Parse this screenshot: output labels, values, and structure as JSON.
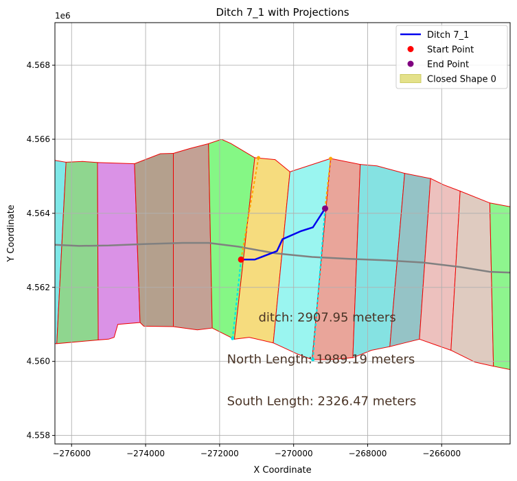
{
  "chart_data": {
    "type": "line",
    "title": "Ditch 7_1 with Projections",
    "xlabel": "X Coordinate",
    "ylabel": "Y Coordinate",
    "y_offset_label": "1e6",
    "xlim": [
      -276450,
      -264150
    ],
    "ylim": [
      4557770,
      4569150
    ],
    "x_ticks": [
      -276000,
      -274000,
      -272000,
      -270000,
      -268000,
      -266000
    ],
    "x_tick_labels": [
      "−276000",
      "−274000",
      "−272000",
      "−270000",
      "−268000",
      "−266000"
    ],
    "y_ticks": [
      4558000,
      4560000,
      4562000,
      4564000,
      4566000,
      4568000
    ],
    "y_tick_labels": [
      "4.558",
      "4.560",
      "4.562",
      "4.564",
      "4.566",
      "4.568"
    ],
    "grid": true,
    "legend_placement": "top-right",
    "colors": {
      "ditch": "#0000ee",
      "start": "#ff0000",
      "end": "#800080",
      "closed_shape": "#e4e18a",
      "outline": "#ee0000",
      "centerline": "#808080",
      "projection_orange": "#ffa500",
      "projection_cyan": "#00e5e5"
    },
    "segments": [
      {
        "color": "#7fe8e8",
        "points": [
          [
            -276450,
            4565430
          ],
          [
            -276150,
            4565380
          ],
          [
            -276400,
            4560480
          ],
          [
            -276450,
            4560480
          ]
        ]
      },
      {
        "color": "#8fd68f",
        "points": [
          [
            -276150,
            4565380
          ],
          [
            -275700,
            4565400
          ],
          [
            -275300,
            4565370
          ],
          [
            -275280,
            4560580
          ],
          [
            -276400,
            4560480
          ]
        ]
      },
      {
        "color": "#da92e6",
        "points": [
          [
            -275300,
            4565370
          ],
          [
            -274300,
            4565340
          ],
          [
            -274150,
            4561050
          ],
          [
            -274750,
            4561000
          ],
          [
            -274850,
            4560650
          ],
          [
            -275000,
            4560600
          ],
          [
            -275280,
            4560580
          ]
        ]
      },
      {
        "color": "#b4a08d",
        "points": [
          [
            -274300,
            4565340
          ],
          [
            -273600,
            4565610
          ],
          [
            -273250,
            4565620
          ],
          [
            -273250,
            4560940
          ],
          [
            -274050,
            4560950
          ],
          [
            -274150,
            4561050
          ]
        ]
      },
      {
        "color": "#c3a195",
        "points": [
          [
            -273250,
            4565620
          ],
          [
            -272800,
            4565750
          ],
          [
            -272300,
            4565880
          ],
          [
            -272200,
            4560900
          ],
          [
            -272600,
            4560850
          ],
          [
            -273250,
            4560940
          ]
        ]
      },
      {
        "color": "#85f785",
        "points": [
          [
            -272300,
            4565880
          ],
          [
            -271950,
            4566000
          ],
          [
            -271700,
            4565890
          ],
          [
            -271050,
            4565500
          ],
          [
            -271600,
            4560600
          ],
          [
            -272200,
            4560900
          ]
        ]
      },
      {
        "color": "#f6dc7e",
        "points": [
          [
            -271050,
            4565500
          ],
          [
            -270500,
            4565450
          ],
          [
            -270100,
            4565120
          ],
          [
            -270550,
            4560500
          ],
          [
            -271200,
            4560650
          ],
          [
            -271600,
            4560600
          ]
        ]
      },
      {
        "color": "#9af5f0",
        "points": [
          [
            -270100,
            4565120
          ],
          [
            -269700,
            4565250
          ],
          [
            -269000,
            4565480
          ],
          [
            -269500,
            4560050
          ],
          [
            -269900,
            4560200
          ],
          [
            -270550,
            4560500
          ]
        ]
      },
      {
        "color": "#e9a59a",
        "points": [
          [
            -269000,
            4565480
          ],
          [
            -268200,
            4565320
          ],
          [
            -268400,
            4560100
          ],
          [
            -269000,
            4560050
          ],
          [
            -269500,
            4560050
          ]
        ]
      },
      {
        "color": "#85e2e2",
        "points": [
          [
            -268200,
            4565320
          ],
          [
            -267750,
            4565280
          ],
          [
            -267000,
            4565080
          ],
          [
            -267400,
            4560400
          ],
          [
            -267900,
            4560300
          ],
          [
            -268400,
            4560100
          ]
        ]
      },
      {
        "color": "#95c3c6",
        "points": [
          [
            -267000,
            4565080
          ],
          [
            -266300,
            4564940
          ],
          [
            -266600,
            4560600
          ],
          [
            -267000,
            4560500
          ],
          [
            -267400,
            4560400
          ]
        ]
      },
      {
        "color": "#edc1be",
        "points": [
          [
            -266300,
            4564940
          ],
          [
            -265950,
            4564770
          ],
          [
            -265500,
            4564600
          ],
          [
            -265750,
            4560300
          ],
          [
            -266600,
            4560600
          ]
        ]
      },
      {
        "color": "#dfcbc0",
        "points": [
          [
            -265500,
            4564600
          ],
          [
            -264700,
            4564280
          ],
          [
            -264600,
            4559870
          ],
          [
            -265100,
            4559980
          ],
          [
            -265750,
            4560300
          ]
        ]
      },
      {
        "color": "#8ef58e",
        "points": [
          [
            -264700,
            4564280
          ],
          [
            -264150,
            4564180
          ],
          [
            -264150,
            4559780
          ],
          [
            -264600,
            4559870
          ]
        ]
      }
    ],
    "centerline": {
      "name": "",
      "x": [
        -276450,
        -275800,
        -275000,
        -274000,
        -273000,
        -272300,
        -271500,
        -270500,
        -269500,
        -268500,
        -267500,
        -266500,
        -265500,
        -264700,
        -264150
      ],
      "y": [
        4563150,
        4563120,
        4563130,
        4563170,
        4563200,
        4563200,
        4563100,
        4562920,
        4562820,
        4562770,
        4562730,
        4562670,
        4562550,
        4562420,
        4562400
      ]
    },
    "series": [
      {
        "name": "Ditch 7_1",
        "type": "line",
        "x": [
          -271420,
          -271050,
          -270450,
          -270300,
          -269800,
          -269480,
          -269150
        ],
        "y": [
          4562750,
          4562750,
          4562980,
          4563300,
          4563520,
          4563620,
          4564130
        ]
      }
    ],
    "points": [
      {
        "name": "Start Point",
        "x": -271420,
        "y": 4562750
      },
      {
        "name": "End Point",
        "x": -269150,
        "y": 4564130
      }
    ],
    "projections": [
      {
        "color": "#ffa500",
        "x": [
          -271420,
          -270950
        ],
        "y": [
          4562750,
          4565500
        ]
      },
      {
        "color": "#00e5e5",
        "x": [
          -271420,
          -271650
        ],
        "y": [
          4562750,
          4560620
        ]
      },
      {
        "color": "#ffa500",
        "x": [
          -269150,
          -269000
        ],
        "y": [
          4564130,
          4565480
        ]
      },
      {
        "color": "#00e5e5",
        "x": [
          -269150,
          -269480
        ],
        "y": [
          4564130,
          4560050
        ]
      }
    ],
    "legend": [
      {
        "label": "Ditch 7_1",
        "kind": "line",
        "color": "#0000ee"
      },
      {
        "label": "Start Point",
        "kind": "marker",
        "color": "#ff0000"
      },
      {
        "label": "End Point",
        "kind": "marker",
        "color": "#800080"
      },
      {
        "label": "Closed Shape 0",
        "kind": "patch",
        "color": "#e4e18a"
      }
    ],
    "annotations": [
      {
        "text": "ditch: 2907.95 meters",
        "x": -270950,
        "y": 4561080
      },
      {
        "text": "North Length: 1989.19 meters",
        "x": -271800,
        "y": 4559950
      },
      {
        "text": "South Length: 2326.47 meters",
        "x": -271800,
        "y": 4558820
      }
    ]
  }
}
